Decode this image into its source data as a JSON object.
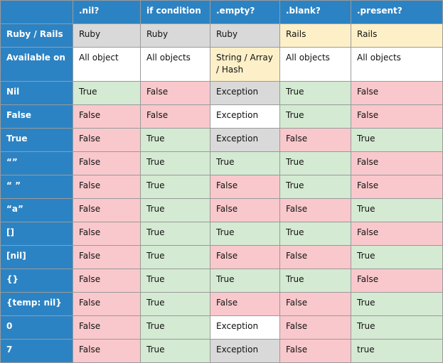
{
  "table": {
    "header": [
      "",
      ".nil?",
      "if condition",
      ".empty?",
      ".blank?",
      ".present?"
    ],
    "rows": [
      [
        "Ruby / Rails",
        "Ruby",
        "Ruby",
        "Ruby",
        "Rails",
        "Rails"
      ],
      [
        "Available on",
        "All object",
        "All objects",
        "String / Array / Hash",
        "All objects",
        "All objects"
      ],
      [
        "Nil",
        "True",
        "False",
        "Exception",
        "True",
        "False"
      ],
      [
        "False",
        "False",
        "False",
        "Exception",
        "True",
        "False"
      ],
      [
        "True",
        "False",
        "True",
        "Exception",
        "False",
        "True"
      ],
      [
        "“”",
        "False",
        "True",
        "True",
        "True",
        "False"
      ],
      [
        "“ ”",
        "False",
        "True",
        "False",
        "True",
        "False"
      ],
      [
        "“a”",
        "False",
        "True",
        "False",
        "False",
        "True"
      ],
      [
        "[]",
        "False",
        "True",
        "True",
        "True",
        "False"
      ],
      [
        "[nil]",
        "False",
        "True",
        "False",
        "False",
        "True"
      ],
      [
        "{}",
        "False",
        "True",
        "True",
        "True",
        "False"
      ],
      [
        "{temp: nil}",
        "False",
        "True",
        "False",
        "False",
        "True"
      ],
      [
        "0",
        "False",
        "True",
        "Exception",
        "False",
        "True"
      ],
      [
        "7",
        "False",
        "True",
        "Exception",
        "False",
        "true"
      ]
    ]
  }
}
